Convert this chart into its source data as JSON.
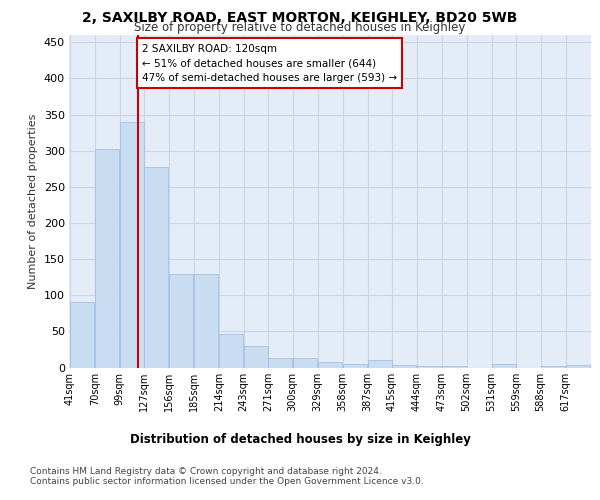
{
  "title_line1": "2, SAXILBY ROAD, EAST MORTON, KEIGHLEY, BD20 5WB",
  "title_line2": "Size of property relative to detached houses in Keighley",
  "xlabel": "Distribution of detached houses by size in Keighley",
  "ylabel": "Number of detached properties",
  "bins": [
    41,
    70,
    99,
    127,
    156,
    185,
    214,
    243,
    271,
    300,
    329,
    358,
    387,
    415,
    444,
    473,
    502,
    531,
    559,
    588,
    617
  ],
  "heights": [
    90,
    302,
    340,
    278,
    130,
    130,
    46,
    30,
    13,
    13,
    7,
    5,
    10,
    3,
    2,
    2,
    0,
    5,
    0,
    2,
    3
  ],
  "bar_color": "#c9ddf2",
  "bar_edge_color": "#9bbce0",
  "grid_color": "#c8d4e8",
  "bg_color": "#e4ecf7",
  "red_line_x": 120,
  "red_line_color": "#cc0000",
  "annotation_line1": "2 SAXILBY ROAD: 120sqm",
  "annotation_line2": "← 51% of detached houses are smaller (644)",
  "annotation_line3": "47% of semi-detached houses are larger (593) →",
  "annotation_box_color": "#ffffff",
  "annotation_box_edge": "#cc0000",
  "ylim": [
    0,
    460
  ],
  "yticks": [
    0,
    50,
    100,
    150,
    200,
    250,
    300,
    350,
    400,
    450
  ],
  "footer_line1": "Contains HM Land Registry data © Crown copyright and database right 2024.",
  "footer_line2": "Contains public sector information licensed under the Open Government Licence v3.0."
}
